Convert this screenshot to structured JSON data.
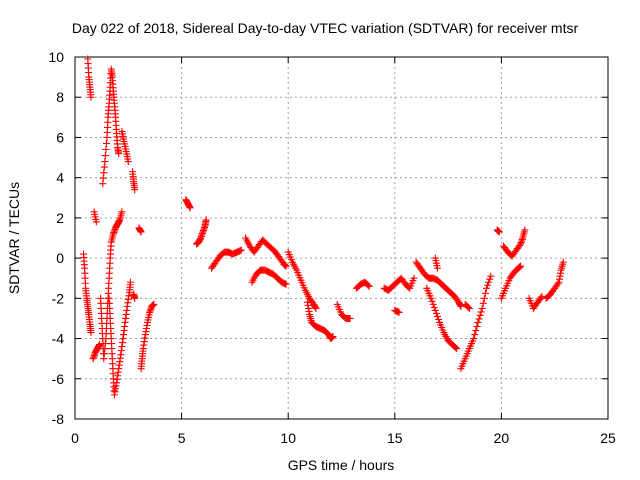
{
  "chart_data": {
    "type": "scatter",
    "title": "Day 022 of 2018, Sidereal Day-to-day VTEC variation (SDTVAR) for receiver mtsr",
    "xlabel": "GPS time / hours",
    "ylabel": "SDTVAR / TECUs",
    "xlim": [
      0,
      25
    ],
    "ylim": [
      -8,
      10
    ],
    "xticks": [
      0,
      5,
      10,
      15,
      20,
      25
    ],
    "yticks": [
      -8,
      -6,
      -4,
      -2,
      0,
      2,
      4,
      6,
      8,
      10
    ],
    "grid": true,
    "marker": "+",
    "color": "#ff0000",
    "series": [
      {
        "name": "SDTVAR",
        "segments": [
          {
            "points": [
              [
                0.4,
                0.2
              ],
              [
                0.45,
                -0.5
              ],
              [
                0.5,
                -1.5
              ],
              [
                0.55,
                -2.0
              ],
              [
                0.6,
                -2.4
              ],
              [
                0.65,
                -2.8
              ],
              [
                0.7,
                -3.3
              ],
              [
                0.75,
                -3.7
              ]
            ]
          },
          {
            "points": [
              [
                0.6,
                9.9
              ],
              [
                0.65,
                9.0
              ],
              [
                0.7,
                8.5
              ],
              [
                0.75,
                8.0
              ]
            ]
          },
          {
            "points": [
              [
                0.9,
                2.3
              ],
              [
                1.0,
                1.8
              ]
            ]
          },
          {
            "points": [
              [
                0.85,
                -5.0
              ],
              [
                0.95,
                -4.7
              ],
              [
                1.05,
                -4.5
              ],
              [
                1.15,
                -4.3
              ]
            ]
          },
          {
            "points": [
              [
                1.2,
                -2.0
              ],
              [
                1.25,
                -3.0
              ],
              [
                1.3,
                -4.0
              ],
              [
                1.35,
                -5.0
              ],
              [
                1.45,
                -4.0
              ],
              [
                1.5,
                -3.0
              ],
              [
                1.55,
                -2.0
              ],
              [
                1.6,
                -1.0
              ],
              [
                1.65,
                0.0
              ],
              [
                1.7,
                0.8
              ],
              [
                1.8,
                1.2
              ],
              [
                1.9,
                1.5
              ],
              [
                2.0,
                1.7
              ],
              [
                2.1,
                1.9
              ],
              [
                2.2,
                2.3
              ]
            ]
          },
          {
            "points": [
              [
                1.3,
                3.7
              ],
              [
                1.4,
                4.8
              ],
              [
                1.5,
                6.0
              ],
              [
                1.55,
                7.0
              ],
              [
                1.6,
                7.7
              ],
              [
                1.65,
                8.5
              ],
              [
                1.7,
                9.4
              ],
              [
                1.75,
                9.0
              ],
              [
                1.8,
                8.3
              ],
              [
                1.85,
                7.7
              ],
              [
                1.9,
                7.0
              ],
              [
                1.95,
                6.2
              ],
              [
                2.0,
                5.5
              ],
              [
                2.05,
                5.2
              ]
            ]
          },
          {
            "points": [
              [
                1.6,
                -2.0
              ],
              [
                1.65,
                -3.0
              ],
              [
                1.7,
                -4.0
              ],
              [
                1.75,
                -5.0
              ],
              [
                1.8,
                -6.0
              ],
              [
                1.85,
                -6.8
              ],
              [
                1.95,
                -6.2
              ],
              [
                2.05,
                -5.5
              ],
              [
                2.15,
                -4.8
              ],
              [
                2.25,
                -4.0
              ],
              [
                2.35,
                -3.2
              ],
              [
                2.45,
                -2.4
              ],
              [
                2.55,
                -1.7
              ],
              [
                2.6,
                -1.2
              ]
            ]
          },
          {
            "points": [
              [
                2.2,
                6.3
              ],
              [
                2.3,
                5.8
              ],
              [
                2.4,
                5.3
              ],
              [
                2.5,
                4.8
              ]
            ]
          },
          {
            "points": [
              [
                2.7,
                4.3
              ],
              [
                2.75,
                3.8
              ],
              [
                2.8,
                3.4
              ]
            ]
          },
          {
            "points": [
              [
                2.75,
                -1.8
              ],
              [
                2.8,
                -2.0
              ]
            ]
          },
          {
            "points": [
              [
                3.0,
                1.5
              ],
              [
                3.1,
                1.3
              ]
            ]
          },
          {
            "points": [
              [
                3.1,
                -5.5
              ],
              [
                3.15,
                -5.0
              ],
              [
                3.2,
                -4.5
              ],
              [
                3.3,
                -3.8
              ],
              [
                3.4,
                -3.2
              ],
              [
                3.5,
                -2.7
              ],
              [
                3.6,
                -2.4
              ],
              [
                3.7,
                -2.3
              ]
            ]
          },
          {
            "points": [
              [
                5.2,
                2.9
              ],
              [
                5.3,
                2.7
              ],
              [
                5.4,
                2.5
              ]
            ]
          },
          {
            "points": [
              [
                5.7,
                0.7
              ],
              [
                5.8,
                0.8
              ],
              [
                5.9,
                1.0
              ],
              [
                6.0,
                1.3
              ],
              [
                6.1,
                1.6
              ],
              [
                6.15,
                1.9
              ]
            ]
          },
          {
            "points": [
              [
                6.4,
                -0.5
              ],
              [
                6.6,
                -0.2
              ],
              [
                6.8,
                0.1
              ],
              [
                7.0,
                0.3
              ],
              [
                7.2,
                0.3
              ],
              [
                7.4,
                0.2
              ],
              [
                7.6,
                0.3
              ],
              [
                7.8,
                0.4
              ]
            ]
          },
          {
            "points": [
              [
                8.0,
                1.0
              ],
              [
                8.2,
                0.6
              ],
              [
                8.4,
                0.3
              ],
              [
                8.6,
                0.6
              ],
              [
                8.8,
                0.9
              ],
              [
                9.0,
                0.7
              ],
              [
                9.2,
                0.5
              ],
              [
                9.4,
                0.3
              ],
              [
                9.6,
                0.0
              ],
              [
                9.8,
                -0.3
              ],
              [
                9.9,
                -0.4
              ]
            ]
          },
          {
            "points": [
              [
                8.3,
                -1.2
              ],
              [
                8.5,
                -0.8
              ],
              [
                8.7,
                -0.6
              ],
              [
                8.9,
                -0.6
              ],
              [
                9.1,
                -0.7
              ],
              [
                9.3,
                -0.8
              ],
              [
                9.5,
                -1.0
              ],
              [
                9.7,
                -1.2
              ],
              [
                9.9,
                -1.3
              ]
            ]
          },
          {
            "points": [
              [
                10.0,
                0.3
              ],
              [
                10.2,
                -0.2
              ],
              [
                10.4,
                -0.6
              ],
              [
                10.6,
                -1.1
              ],
              [
                10.8,
                -1.6
              ],
              [
                11.0,
                -2.0
              ],
              [
                11.2,
                -2.3
              ],
              [
                11.3,
                -2.5
              ]
            ]
          },
          {
            "points": [
              [
                10.9,
                -2.2
              ],
              [
                11.0,
                -2.8
              ],
              [
                11.1,
                -3.2
              ],
              [
                11.3,
                -3.4
              ],
              [
                11.5,
                -3.5
              ],
              [
                11.7,
                -3.6
              ],
              [
                11.9,
                -3.8
              ],
              [
                12.0,
                -4.0
              ],
              [
                12.1,
                -3.9
              ]
            ]
          },
          {
            "points": [
              [
                12.3,
                -2.3
              ],
              [
                12.5,
                -2.8
              ],
              [
                12.7,
                -3.0
              ],
              [
                12.9,
                -3.0
              ]
            ]
          },
          {
            "points": [
              [
                13.2,
                -1.5
              ],
              [
                13.4,
                -1.3
              ],
              [
                13.6,
                -1.2
              ],
              [
                13.8,
                -1.4
              ]
            ]
          },
          {
            "points": [
              [
                14.5,
                -1.5
              ],
              [
                14.7,
                -1.6
              ],
              [
                14.9,
                -1.4
              ],
              [
                15.1,
                -1.2
              ],
              [
                15.3,
                -1.0
              ],
              [
                15.5,
                -1.3
              ],
              [
                15.7,
                -1.5
              ],
              [
                15.9,
                -1.0
              ]
            ]
          },
          {
            "points": [
              [
                15.0,
                -2.6
              ],
              [
                15.2,
                -2.7
              ]
            ]
          },
          {
            "points": [
              [
                16.0,
                -0.2
              ],
              [
                16.2,
                -0.5
              ],
              [
                16.4,
                -0.8
              ],
              [
                16.6,
                -1.0
              ],
              [
                16.8,
                -1.0
              ],
              [
                17.0,
                -1.1
              ],
              [
                17.2,
                -1.3
              ],
              [
                17.4,
                -1.5
              ],
              [
                17.6,
                -1.7
              ],
              [
                17.8,
                -1.9
              ],
              [
                18.0,
                -2.2
              ],
              [
                18.1,
                -2.4
              ]
            ]
          },
          {
            "points": [
              [
                16.5,
                -1.5
              ],
              [
                16.7,
                -2.0
              ],
              [
                16.9,
                -2.6
              ],
              [
                17.1,
                -3.2
              ],
              [
                17.3,
                -3.7
              ],
              [
                17.5,
                -4.1
              ],
              [
                17.7,
                -4.3
              ],
              [
                17.9,
                -4.5
              ]
            ]
          },
          {
            "points": [
              [
                16.9,
                0.0
              ],
              [
                17.0,
                -0.5
              ]
            ]
          },
          {
            "points": [
              [
                18.1,
                -5.5
              ],
              [
                18.3,
                -5.0
              ],
              [
                18.5,
                -4.5
              ],
              [
                18.7,
                -4.0
              ],
              [
                18.9,
                -3.2
              ],
              [
                19.1,
                -2.5
              ],
              [
                19.3,
                -1.5
              ],
              [
                19.5,
                -0.9
              ]
            ]
          },
          {
            "points": [
              [
                18.3,
                -2.3
              ],
              [
                18.5,
                -2.5
              ]
            ]
          },
          {
            "points": [
              [
                19.8,
                1.4
              ],
              [
                19.9,
                1.3
              ]
            ]
          },
          {
            "points": [
              [
                20.0,
                -2.0
              ],
              [
                20.2,
                -1.5
              ],
              [
                20.4,
                -1.0
              ],
              [
                20.6,
                -0.7
              ],
              [
                20.8,
                -0.5
              ],
              [
                20.9,
                -0.4
              ]
            ]
          },
          {
            "points": [
              [
                20.1,
                0.6
              ],
              [
                20.3,
                0.3
              ],
              [
                20.5,
                0.1
              ],
              [
                20.7,
                0.4
              ],
              [
                20.9,
                0.7
              ],
              [
                21.0,
                1.0
              ],
              [
                21.1,
                1.4
              ]
            ]
          },
          {
            "points": [
              [
                21.3,
                -2.0
              ],
              [
                21.5,
                -2.5
              ],
              [
                21.7,
                -2.2
              ],
              [
                21.9,
                -1.9
              ]
            ]
          },
          {
            "points": [
              [
                22.1,
                -2.0
              ],
              [
                22.3,
                -1.8
              ],
              [
                22.5,
                -1.5
              ],
              [
                22.7,
                -1.2
              ],
              [
                22.8,
                -0.6
              ],
              [
                22.9,
                -0.2
              ]
            ]
          }
        ]
      }
    ]
  }
}
